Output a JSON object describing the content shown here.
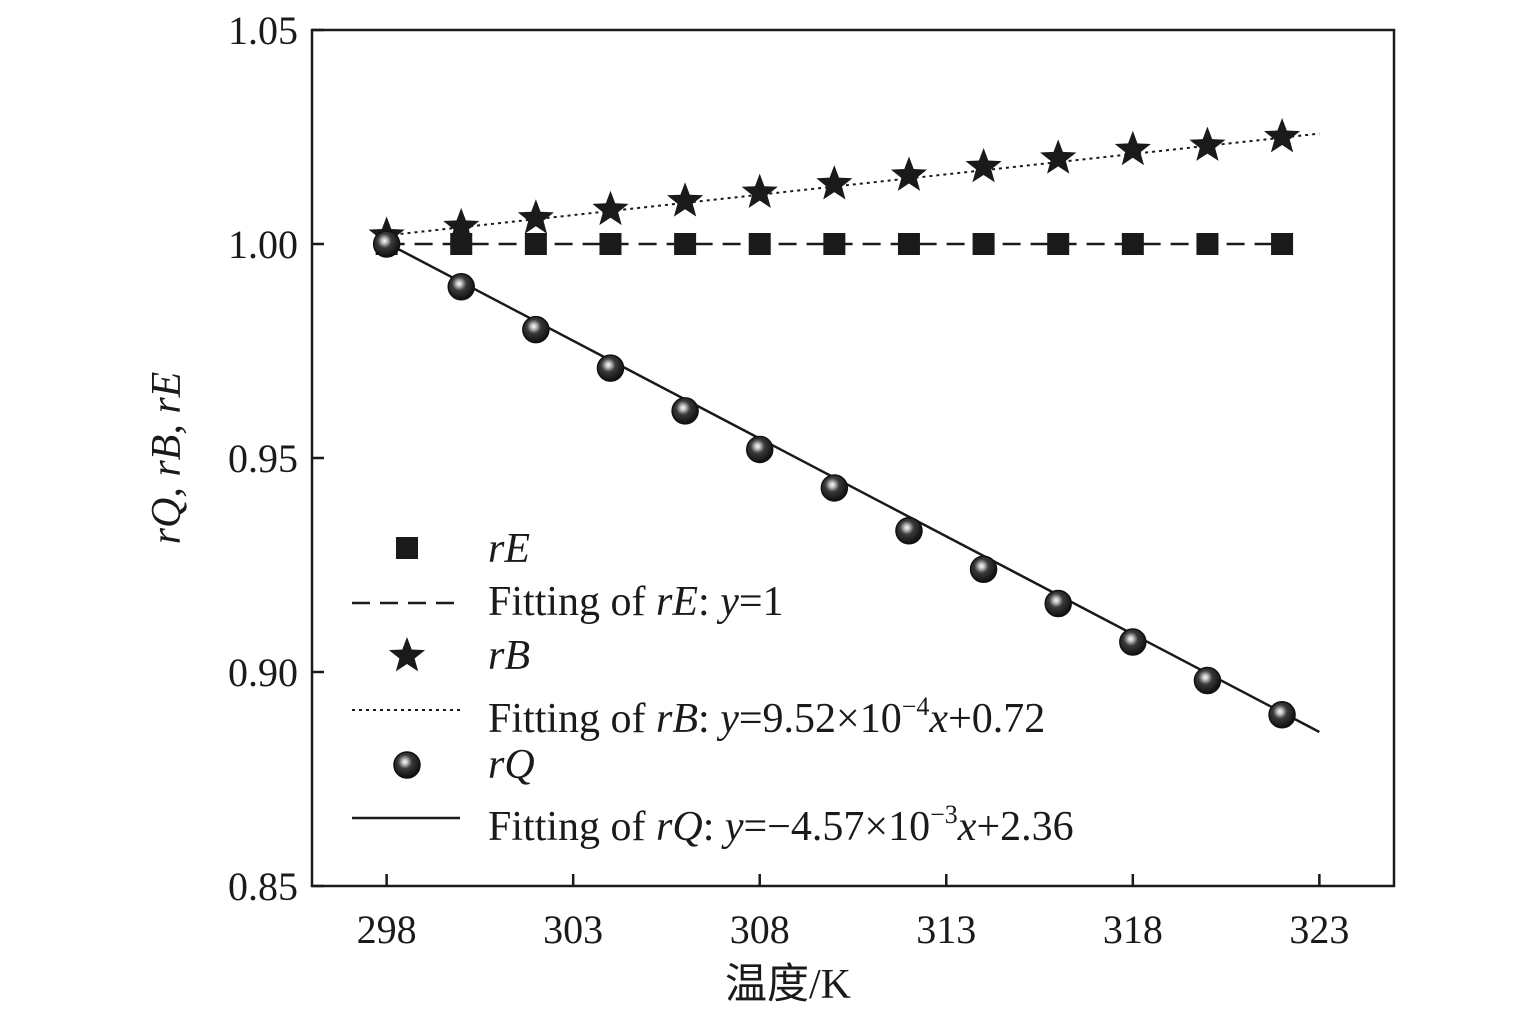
{
  "chart_data": {
    "type": "scatter",
    "xlabel": "温度/K",
    "ylabel": "rQ, rB, rE",
    "xlim": [
      296,
      325
    ],
    "ylim": [
      0.85,
      1.05
    ],
    "xticks": [
      298,
      303,
      308,
      313,
      318,
      323
    ],
    "yticks": [
      0.85,
      0.9,
      0.95,
      1.0,
      1.05
    ],
    "xtick_labels": [
      "298",
      "303",
      "308",
      "313",
      "318",
      "323"
    ],
    "ytick_labels": [
      "0.85",
      "0.90",
      "0.95",
      "1.00",
      "1.05"
    ],
    "x": [
      298,
      300,
      302,
      304,
      306,
      308,
      310,
      312,
      314,
      316,
      318,
      320,
      322
    ],
    "grid": false,
    "legend_position": "bottom-left",
    "series": [
      {
        "name": "rE",
        "marker": "square",
        "values": [
          1.0,
          1.0,
          1.0,
          1.0,
          1.0,
          1.0,
          1.0,
          1.0,
          1.0,
          1.0,
          1.0,
          1.0,
          1.0
        ]
      },
      {
        "name": "rB",
        "marker": "star",
        "values": [
          1.002,
          1.004,
          1.006,
          1.008,
          1.01,
          1.012,
          1.014,
          1.016,
          1.018,
          1.02,
          1.022,
          1.023,
          1.025
        ]
      },
      {
        "name": "rQ",
        "marker": "sphere",
        "values": [
          1.0,
          0.99,
          0.98,
          0.971,
          0.961,
          0.952,
          0.943,
          0.933,
          0.924,
          0.916,
          0.907,
          0.898,
          0.89
        ]
      }
    ],
    "fits": [
      {
        "name": "Fitting of rE: y=1",
        "style": "dashed",
        "slope": 0,
        "intercept": 1,
        "x_range": [
          298,
          322
        ]
      },
      {
        "name": "Fitting of rB: y=9.52×10−4x+0.72",
        "style": "dotted",
        "slope": 0.000952,
        "intercept": 0.7183,
        "x_range": [
          298,
          323
        ]
      },
      {
        "name": "Fitting of rQ: y=−4.57×10−3x+2.36",
        "style": "solid",
        "slope": -0.00457,
        "intercept": 2.3621,
        "x_range": [
          298,
          323
        ]
      }
    ]
  },
  "legend": {
    "rE_label": {
      "italic": "rE"
    },
    "fitE_label": {
      "prefix": "Fitting of ",
      "name": "rE",
      "sep": ": ",
      "y": "y",
      "eq": "=1"
    },
    "rB_label": {
      "italic": "rB"
    },
    "fitB_label": {
      "prefix": "Fitting of ",
      "name": "rB",
      "sep": ": ",
      "y": "y",
      "eq1": "=9.52×10",
      "exp": "−4",
      "x": "x",
      "eq2": "+0.72"
    },
    "rQ_label": {
      "italic": "rQ"
    },
    "fitQ_label": {
      "prefix": "Fitting of ",
      "name": "rQ",
      "sep": ": ",
      "y": "y",
      "eq1": "=−4.57×10",
      "exp": "−3",
      "x": "x",
      "eq2": "+2.36"
    }
  }
}
